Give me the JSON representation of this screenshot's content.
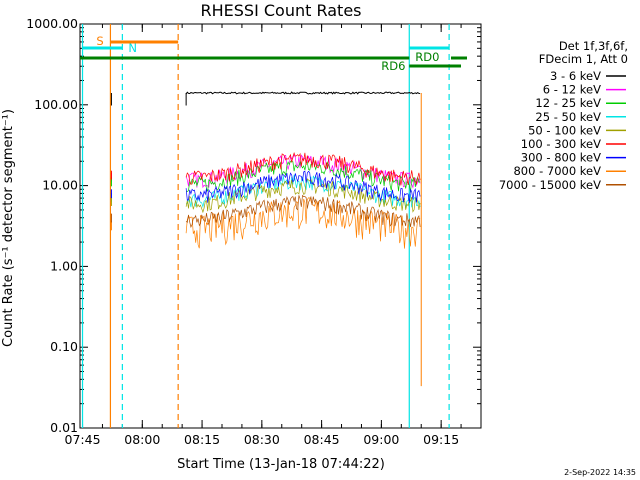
{
  "chart_data": {
    "type": "line",
    "title": "RHESSI Count Rates",
    "xlabel": "Start Time (13-Jan-18 07:44:22)",
    "ylabel": "Count Rate (s⁻¹ detector segment⁻¹)",
    "footer": "2-Sep-2022 14:35",
    "y_scale": "log",
    "ylim": [
      0.01,
      1000
    ],
    "xlim": [
      "07:44:22",
      "09:25:00"
    ],
    "x_ticks": [
      "07:45",
      "08:00",
      "08:15",
      "08:30",
      "08:45",
      "09:00",
      "09:15"
    ],
    "y_ticks": [
      "0.01",
      "0.10",
      "1.00",
      "10.00",
      "100.00",
      "1000.00"
    ],
    "legend_header": [
      "Det 1f,3f,6f,",
      "FDecim 1, Att 0"
    ],
    "series": [
      {
        "name": "3 - 6 keV",
        "color": "#000000",
        "level": 140
      },
      {
        "name": "6 - 12 keV",
        "color": "#ff00ff",
        "level": 16
      },
      {
        "name": "12 - 25 keV",
        "color": "#00cc00",
        "level": 14
      },
      {
        "name": "25 - 50 keV",
        "color": "#00e5e5",
        "level": 9
      },
      {
        "name": "50 - 100 keV",
        "color": "#a0a000",
        "level": 8
      },
      {
        "name": "100 - 300 keV",
        "color": "#ff0000",
        "level": 17
      },
      {
        "name": "300 - 800 keV",
        "color": "#0000ff",
        "level": 10
      },
      {
        "name": "800 - 7000 keV",
        "color": "#ff8000",
        "level": 4
      },
      {
        "name": "7000 - 15000 keV",
        "color": "#b05000",
        "level": 5
      }
    ],
    "data_start": "08:11",
    "data_end": "09:10",
    "annotations": {
      "saa": {
        "label": "S",
        "start": "07:52",
        "end": "08:09",
        "color": "#ff8000"
      },
      "night": {
        "label": "N",
        "start": "07:45",
        "end": "07:55",
        "color": "#00e5e5"
      },
      "night2": {
        "start": "09:07",
        "end": "09:17",
        "color": "#00e5e5"
      },
      "rd6": {
        "label": "RD6",
        "color": "#008000"
      },
      "rd0": {
        "label": "RD0",
        "color": "#008000"
      }
    }
  }
}
